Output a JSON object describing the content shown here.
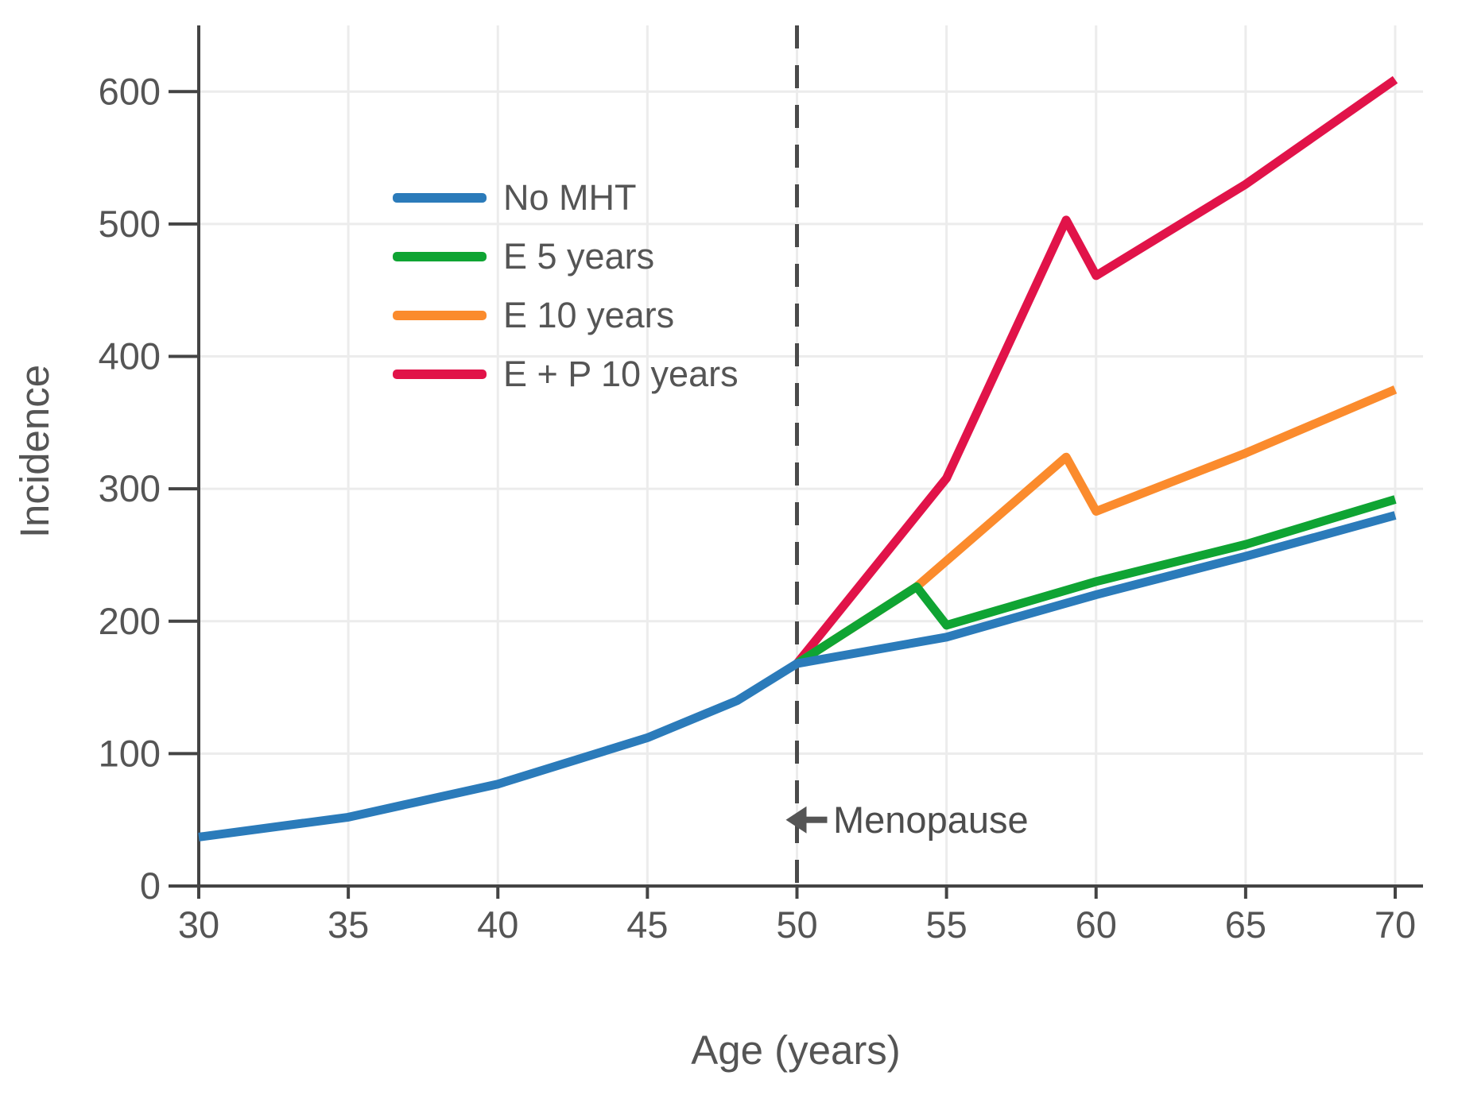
{
  "chart_data": {
    "type": "line",
    "title": "",
    "xlabel": "Age (years)",
    "ylabel": "Incidence",
    "x_ticks": [
      30,
      35,
      40,
      45,
      50,
      55,
      60,
      65,
      70
    ],
    "y_ticks": [
      0,
      100,
      200,
      300,
      400,
      500,
      600
    ],
    "xlim": [
      30,
      70.9
    ],
    "ylim": [
      0,
      650
    ],
    "grid": true,
    "legend_position": "inside top-left",
    "reference_line": {
      "axis": "x",
      "value": 50,
      "style": "dashed"
    },
    "annotation": {
      "text": "Menopause",
      "icon": "left-arrow",
      "x": 50,
      "y": 50
    },
    "series": [
      {
        "name": "No MHT",
        "color": "#2b7bba",
        "points": [
          [
            30,
            37
          ],
          [
            35,
            52
          ],
          [
            40,
            77
          ],
          [
            45,
            112
          ],
          [
            48,
            140
          ],
          [
            50,
            168
          ],
          [
            55,
            188
          ],
          [
            60,
            220
          ],
          [
            65,
            249
          ],
          [
            70,
            280
          ]
        ]
      },
      {
        "name": "E 5 years",
        "color": "#0fa433",
        "points": [
          [
            50,
            168
          ],
          [
            54,
            226
          ],
          [
            55,
            197
          ],
          [
            60,
            230
          ],
          [
            65,
            258
          ],
          [
            70,
            292
          ]
        ]
      },
      {
        "name": "E 10 years",
        "color": "#fb8b2d",
        "points": [
          [
            50,
            168
          ],
          [
            54,
            226
          ],
          [
            59,
            324
          ],
          [
            60,
            283
          ],
          [
            65,
            327
          ],
          [
            70,
            375
          ]
        ]
      },
      {
        "name": "E + P 10 years",
        "color": "#e11349",
        "points": [
          [
            50,
            168
          ],
          [
            55,
            308
          ],
          [
            59,
            503
          ],
          [
            60,
            461
          ],
          [
            65,
            530
          ],
          [
            70,
            609
          ]
        ]
      }
    ]
  },
  "style_colors": {
    "axis": "#444444",
    "grid": "#ececec",
    "tick_text": "#555555",
    "dashed_line": "#4a4a4a",
    "annotation": "#555555"
  }
}
